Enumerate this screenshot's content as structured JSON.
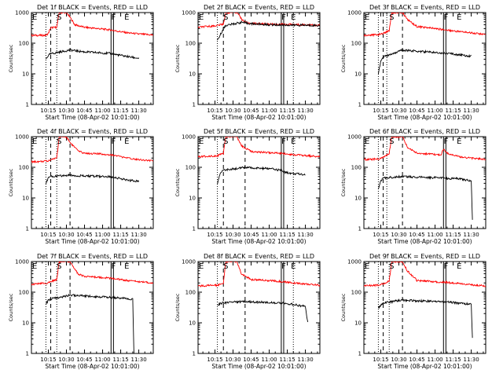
{
  "chart_data": {
    "type": "line",
    "y_scale": "log",
    "ylim": [
      1,
      1000
    ],
    "xlim": [
      "10:01:00",
      "11:42:00"
    ],
    "x_tick_labels": [
      "10:15",
      "10:30",
      "10:45",
      "11:00",
      "11:15",
      "11:30"
    ],
    "y_tick_labels": [
      "1",
      "10",
      "100",
      "1000"
    ],
    "xlabel": "Start Time (08-Apr-02 10:01:00)",
    "ylabel": "Counts/sec",
    "series_colors": {
      "events": "#000000",
      "lld": "#ff0000"
    },
    "panels": [
      {
        "title": "Det 1f BLACK = Events, RED = LLD",
        "markers": [
          {
            "label": "E",
            "time": "10:01"
          },
          {
            "label": "S",
            "time": "10:24"
          },
          {
            "label": "F",
            "time": "11:09"
          },
          {
            "label": "E",
            "time": "11:20"
          }
        ],
        "vlines": {
          "dotted": [
            "10:13",
            "10:22"
          ],
          "dashed": [
            "10:17",
            "10:33"
          ],
          "solid": [
            "11:07",
            "11:09"
          ]
        },
        "lld": [
          [
            "10:01",
            180
          ],
          [
            "10:13",
            180
          ],
          [
            "10:15",
            210
          ],
          [
            "10:17",
            320
          ],
          [
            "10:22",
            330
          ],
          [
            "10:24",
            1000
          ],
          [
            "10:30",
            1000
          ],
          [
            "10:33",
            700
          ],
          [
            "10:37",
            400
          ],
          [
            "10:45",
            330
          ],
          [
            "11:00",
            290
          ],
          [
            "11:07",
            270
          ],
          [
            "11:09",
            260
          ],
          [
            "11:20",
            220
          ],
          [
            "11:30",
            200
          ],
          [
            "11:42",
            185
          ]
        ],
        "events": [
          [
            "10:13",
            30
          ],
          [
            "10:15",
            40
          ],
          [
            "10:17",
            45
          ],
          [
            "10:33",
            60
          ],
          [
            "10:45",
            52
          ],
          [
            "11:00",
            48
          ],
          [
            "11:07",
            46
          ],
          [
            "11:09",
            44
          ],
          [
            "11:20",
            37
          ],
          [
            "11:30",
            32
          ]
        ]
      },
      {
        "title": "Det 2f BLACK = Events, RED = LLD",
        "markers": [
          {
            "label": "E",
            "time": "10:01"
          },
          {
            "label": "S",
            "time": "10:24"
          },
          {
            "label": "F",
            "time": "11:12"
          },
          {
            "label": "E",
            "time": "11:20"
          }
        ],
        "vlines": {
          "dotted": [
            "10:17",
            "11:20"
          ],
          "dashed": [
            "10:22",
            "10:40"
          ],
          "solid": [
            "11:10",
            "11:12"
          ]
        },
        "lld": [
          [
            "10:01",
            330
          ],
          [
            "10:15",
            370
          ],
          [
            "10:17",
            380
          ],
          [
            "10:22",
            420
          ],
          [
            "10:24",
            1000
          ],
          [
            "10:34",
            1000
          ],
          [
            "10:37",
            600
          ],
          [
            "10:42",
            450
          ],
          [
            "11:00",
            420
          ],
          [
            "11:15",
            410
          ],
          [
            "11:30",
            400
          ],
          [
            "11:42",
            380
          ]
        ],
        "events": [
          [
            "10:17",
            120
          ],
          [
            "10:22",
            300
          ],
          [
            "10:24",
            380
          ],
          [
            "10:37",
            480
          ],
          [
            "10:45",
            430
          ],
          [
            "11:00",
            400
          ],
          [
            "11:15",
            390
          ],
          [
            "11:30",
            385
          ],
          [
            "11:42",
            380
          ]
        ]
      },
      {
        "title": "Det 3f BLACK = Events, RED = LLD",
        "markers": [
          {
            "label": "E",
            "time": "10:01"
          },
          {
            "label": "S",
            "time": "10:24"
          },
          {
            "label": "F",
            "time": "11:09"
          },
          {
            "label": "E",
            "time": "11:20"
          }
        ],
        "vlines": {
          "dotted": [
            "10:13",
            "10:20"
          ],
          "dashed": [
            "10:17",
            "10:33"
          ],
          "solid": [
            "11:07",
            "11:09"
          ]
        },
        "lld": [
          [
            "10:01",
            180
          ],
          [
            "10:13",
            190
          ],
          [
            "10:17",
            210
          ],
          [
            "10:22",
            260
          ],
          [
            "10:24",
            1000
          ],
          [
            "10:33",
            1000
          ],
          [
            "10:37",
            600
          ],
          [
            "10:45",
            350
          ],
          [
            "11:00",
            300
          ],
          [
            "11:09",
            270
          ],
          [
            "11:20",
            240
          ],
          [
            "11:30",
            220
          ],
          [
            "11:42",
            190
          ]
        ],
        "events": [
          [
            "10:13",
            10
          ],
          [
            "10:15",
            25
          ],
          [
            "10:17",
            35
          ],
          [
            "10:33",
            60
          ],
          [
            "10:45",
            55
          ],
          [
            "11:00",
            50
          ],
          [
            "11:09",
            47
          ],
          [
            "11:20",
            42
          ],
          [
            "11:30",
            38
          ]
        ]
      },
      {
        "title": "Det 4f BLACK = Events, RED = LLD",
        "markers": [
          {
            "label": "E",
            "time": "10:01"
          },
          {
            "label": "S",
            "time": "10:24"
          },
          {
            "label": "F",
            "time": "11:09"
          },
          {
            "label": "E",
            "time": "11:20"
          }
        ],
        "vlines": {
          "dotted": [
            "10:13",
            "10:22"
          ],
          "dashed": [
            "10:17",
            "10:33"
          ],
          "solid": [
            "11:07",
            "11:09"
          ]
        },
        "lld": [
          [
            "10:01",
            150
          ],
          [
            "10:15",
            160
          ],
          [
            "10:17",
            180
          ],
          [
            "10:22",
            200
          ],
          [
            "10:24",
            1000
          ],
          [
            "10:30",
            1000
          ],
          [
            "10:33",
            650
          ],
          [
            "10:40",
            330
          ],
          [
            "10:45",
            290
          ],
          [
            "11:00",
            270
          ],
          [
            "11:09",
            250
          ],
          [
            "11:20",
            200
          ],
          [
            "11:30",
            180
          ],
          [
            "11:42",
            160
          ]
        ],
        "events": [
          [
            "10:13",
            30
          ],
          [
            "10:15",
            45
          ],
          [
            "10:17",
            50
          ],
          [
            "10:33",
            55
          ],
          [
            "10:45",
            52
          ],
          [
            "11:00",
            50
          ],
          [
            "11:09",
            48
          ],
          [
            "11:20",
            38
          ],
          [
            "11:30",
            35
          ]
        ]
      },
      {
        "title": "Det 5f BLACK = Events, RED = LLD",
        "markers": [
          {
            "label": "E",
            "time": "10:01"
          },
          {
            "label": "S",
            "time": "10:24"
          },
          {
            "label": "F",
            "time": "11:12"
          },
          {
            "label": "E",
            "time": "11:20"
          }
        ],
        "vlines": {
          "dotted": [
            "10:17",
            "11:20"
          ],
          "dashed": [
            "10:22",
            "10:40"
          ],
          "solid": [
            "11:10",
            "11:12"
          ]
        },
        "lld": [
          [
            "10:01",
            220
          ],
          [
            "10:17",
            240
          ],
          [
            "10:22",
            280
          ],
          [
            "10:24",
            1000
          ],
          [
            "10:33",
            1000
          ],
          [
            "10:37",
            500
          ],
          [
            "10:45",
            330
          ],
          [
            "11:00",
            300
          ],
          [
            "11:12",
            280
          ],
          [
            "11:20",
            260
          ],
          [
            "11:30",
            240
          ],
          [
            "11:42",
            220
          ]
        ],
        "events": [
          [
            "10:17",
            30
          ],
          [
            "10:19",
            60
          ],
          [
            "10:22",
            80
          ],
          [
            "10:40",
            100
          ],
          [
            "10:45",
            95
          ],
          [
            "11:00",
            90
          ],
          [
            "11:10",
            80
          ],
          [
            "11:12",
            70
          ],
          [
            "11:20",
            62
          ],
          [
            "11:30",
            58
          ]
        ]
      },
      {
        "title": "Det 6f BLACK = Events, RED = LLD",
        "markers": [
          {
            "label": "E",
            "time": "10:01"
          },
          {
            "label": "S",
            "time": "10:24"
          },
          {
            "label": "F",
            "time": "11:09"
          },
          {
            "label": "E",
            "time": "11:20"
          }
        ],
        "vlines": {
          "dotted": [
            "10:13",
            "10:20"
          ],
          "dashed": [
            "10:17",
            "10:33"
          ],
          "solid": [
            "11:07",
            "11:09"
          ]
        },
        "lld": [
          [
            "10:01",
            180
          ],
          [
            "10:13",
            185
          ],
          [
            "10:17",
            210
          ],
          [
            "10:22",
            280
          ],
          [
            "10:24",
            1000
          ],
          [
            "10:33",
            1000
          ],
          [
            "10:37",
            450
          ],
          [
            "10:45",
            290
          ],
          [
            "11:00",
            260
          ],
          [
            "11:05",
            255
          ],
          [
            "11:07",
            400
          ],
          [
            "11:09",
            300
          ],
          [
            "11:20",
            220
          ],
          [
            "11:30",
            200
          ],
          [
            "11:42",
            180
          ]
        ],
        "events": [
          [
            "10:13",
            20
          ],
          [
            "10:15",
            35
          ],
          [
            "10:17",
            45
          ],
          [
            "10:33",
            50
          ],
          [
            "10:45",
            48
          ],
          [
            "11:00",
            46
          ],
          [
            "11:09",
            44
          ],
          [
            "11:20",
            42
          ],
          [
            "11:30",
            36
          ],
          [
            "11:31",
            2
          ]
        ]
      },
      {
        "title": "Det 7f BLACK = Events, RED = LLD",
        "markers": [
          {
            "label": "E",
            "time": "10:01"
          },
          {
            "label": "S",
            "time": "10:24"
          },
          {
            "label": "F",
            "time": "11:09"
          },
          {
            "label": "E",
            "time": "11:20"
          }
        ],
        "vlines": {
          "dotted": [
            "10:13",
            "10:22"
          ],
          "dashed": [
            "10:17",
            "10:33"
          ],
          "solid": [
            "11:07",
            "11:09"
          ]
        },
        "lld": [
          [
            "10:01",
            180
          ],
          [
            "10:15",
            200
          ],
          [
            "10:17",
            220
          ],
          [
            "10:22",
            260
          ],
          [
            "10:24",
            1000
          ],
          [
            "10:33",
            1000
          ],
          [
            "10:40",
            380
          ],
          [
            "10:45",
            330
          ],
          [
            "11:00",
            300
          ],
          [
            "11:09",
            280
          ],
          [
            "11:20",
            240
          ],
          [
            "11:30",
            220
          ],
          [
            "11:42",
            200
          ]
        ],
        "events": [
          [
            "10:13",
            40
          ],
          [
            "10:15",
            55
          ],
          [
            "10:17",
            60
          ],
          [
            "10:33",
            80
          ],
          [
            "10:45",
            75
          ],
          [
            "11:00",
            70
          ],
          [
            "11:09",
            66
          ],
          [
            "11:20",
            62
          ],
          [
            "11:25",
            58
          ],
          [
            "11:26",
            1
          ]
        ]
      },
      {
        "title": "Det 8f BLACK = Events, RED = LLD",
        "markers": [
          {
            "label": "E",
            "time": "10:01"
          },
          {
            "label": "S",
            "time": "10:24"
          },
          {
            "label": "F",
            "time": "11:12"
          },
          {
            "label": "E",
            "time": "11:20"
          }
        ],
        "vlines": {
          "dotted": [
            "10:17",
            "11:20"
          ],
          "dashed": [
            "10:22",
            "10:40"
          ],
          "solid": [
            "11:10",
            "11:12"
          ]
        },
        "lld": [
          [
            "10:01",
            160
          ],
          [
            "10:17",
            170
          ],
          [
            "10:22",
            200
          ],
          [
            "10:24",
            1000
          ],
          [
            "10:33",
            1000
          ],
          [
            "10:37",
            400
          ],
          [
            "10:45",
            260
          ],
          [
            "11:00",
            240
          ],
          [
            "11:12",
            220
          ],
          [
            "11:20",
            200
          ],
          [
            "11:30",
            185
          ],
          [
            "11:42",
            170
          ]
        ],
        "events": [
          [
            "10:17",
            35
          ],
          [
            "10:19",
            42
          ],
          [
            "10:22",
            45
          ],
          [
            "10:40",
            50
          ],
          [
            "10:45",
            48
          ],
          [
            "11:00",
            46
          ],
          [
            "11:12",
            44
          ],
          [
            "11:20",
            40
          ],
          [
            "11:30",
            34
          ],
          [
            "11:32",
            10
          ]
        ]
      },
      {
        "title": "Det 9f BLACK = Events, RED = LLD",
        "markers": [
          {
            "label": "E",
            "time": "10:01"
          },
          {
            "label": "S",
            "time": "10:24"
          },
          {
            "label": "F",
            "time": "11:09"
          },
          {
            "label": "E",
            "time": "11:20"
          }
        ],
        "vlines": {
          "dotted": [
            "10:13",
            "10:22"
          ],
          "dashed": [
            "10:17",
            "10:33"
          ],
          "solid": [
            "11:07",
            "11:09"
          ]
        },
        "lld": [
          [
            "10:01",
            160
          ],
          [
            "10:13",
            170
          ],
          [
            "10:17",
            190
          ],
          [
            "10:22",
            230
          ],
          [
            "10:24",
            1000
          ],
          [
            "10:33",
            1000
          ],
          [
            "10:37",
            500
          ],
          [
            "10:45",
            240
          ],
          [
            "11:00",
            220
          ],
          [
            "11:09",
            210
          ],
          [
            "11:20",
            190
          ],
          [
            "11:30",
            175
          ],
          [
            "11:42",
            160
          ]
        ],
        "events": [
          [
            "10:13",
            30
          ],
          [
            "10:15",
            38
          ],
          [
            "10:17",
            45
          ],
          [
            "10:33",
            55
          ],
          [
            "10:45",
            52
          ],
          [
            "11:00",
            50
          ],
          [
            "11:09",
            48
          ],
          [
            "11:20",
            44
          ],
          [
            "11:30",
            40
          ],
          [
            "11:31",
            3
          ]
        ]
      }
    ]
  }
}
